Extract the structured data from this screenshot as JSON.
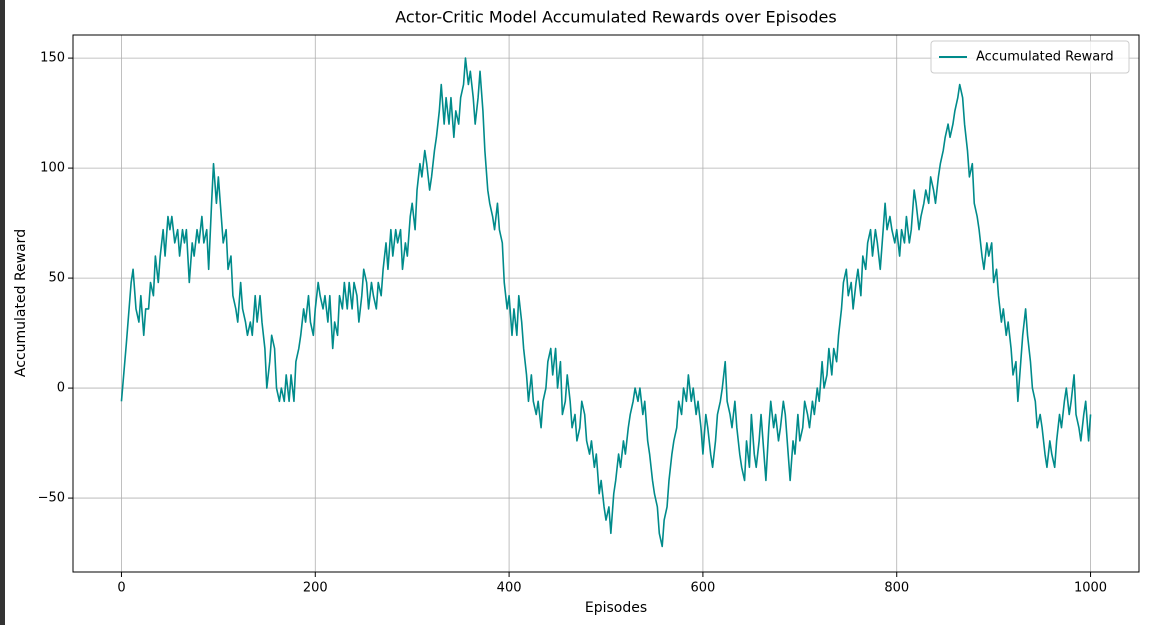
{
  "chart_data": {
    "type": "line",
    "title": "Actor-Critic Model Accumulated Rewards over Episodes",
    "xlabel": "Episodes",
    "ylabel": "Accumulated Reward",
    "x": [
      0,
      5,
      10,
      12,
      15,
      18,
      20,
      23,
      25,
      28,
      30,
      33,
      35,
      38,
      40,
      43,
      45,
      48,
      50,
      52,
      55,
      58,
      60,
      63,
      65,
      67,
      70,
      73,
      75,
      78,
      80,
      83,
      85,
      88,
      90,
      93,
      95,
      98,
      100,
      103,
      105,
      108,
      110,
      113,
      115,
      118,
      120,
      123,
      125,
      128,
      130,
      133,
      135,
      138,
      140,
      143,
      145,
      148,
      150,
      153,
      155,
      158,
      160,
      163,
      165,
      168,
      170,
      173,
      175,
      178,
      180,
      183,
      185,
      188,
      190,
      193,
      195,
      198,
      200,
      203,
      205,
      208,
      210,
      213,
      215,
      218,
      220,
      223,
      225,
      228,
      230,
      233,
      235,
      238,
      240,
      243,
      245,
      248,
      250,
      253,
      255,
      258,
      260,
      263,
      265,
      268,
      270,
      273,
      275,
      278,
      280,
      283,
      285,
      288,
      290,
      293,
      295,
      298,
      300,
      303,
      305,
      308,
      310,
      313,
      315,
      318,
      320,
      323,
      325,
      328,
      330,
      333,
      335,
      338,
      340,
      343,
      345,
      348,
      350,
      353,
      355,
      358,
      360,
      363,
      365,
      368,
      370,
      373,
      375,
      378,
      380,
      383,
      385,
      388,
      390,
      393,
      395,
      398,
      400,
      403,
      405,
      408,
      410,
      413,
      415,
      418,
      420,
      423,
      425,
      428,
      430,
      433,
      435,
      438,
      440,
      443,
      445,
      448,
      450,
      453,
      455,
      458,
      460,
      463,
      465,
      468,
      470,
      473,
      475,
      478,
      480,
      483,
      485,
      488,
      490,
      493,
      495,
      498,
      500,
      503,
      505,
      508,
      510,
      513,
      515,
      518,
      520,
      523,
      525,
      528,
      530,
      533,
      535,
      538,
      540,
      543,
      545,
      548,
      550,
      553,
      555,
      558,
      560,
      563,
      565,
      568,
      570,
      573,
      575,
      578,
      580,
      583,
      585,
      588,
      590,
      593,
      595,
      598,
      600,
      603,
      605,
      608,
      610,
      613,
      615,
      618,
      620,
      623,
      625,
      628,
      630,
      633,
      635,
      638,
      640,
      643,
      645,
      648,
      650,
      653,
      655,
      658,
      660,
      663,
      665,
      668,
      670,
      673,
      675,
      678,
      680,
      683,
      685,
      688,
      690,
      693,
      695,
      698,
      700,
      703,
      705,
      708,
      710,
      713,
      715,
      718,
      720,
      723,
      725,
      728,
      730,
      733,
      735,
      738,
      740,
      743,
      745,
      748,
      750,
      753,
      755,
      758,
      760,
      763,
      765,
      768,
      770,
      773,
      775,
      778,
      780,
      783,
      785,
      788,
      790,
      793,
      795,
      798,
      800,
      803,
      805,
      808,
      810,
      813,
      815,
      818,
      820,
      823,
      825,
      828,
      830,
      833,
      835,
      838,
      840,
      843,
      845,
      848,
      850,
      853,
      855,
      858,
      860,
      863,
      865,
      868,
      870,
      873,
      875,
      878,
      880,
      883,
      885,
      888,
      890,
      893,
      895,
      898,
      900,
      903,
      905,
      908,
      910,
      913,
      915,
      918,
      920,
      923,
      925,
      928,
      930,
      933,
      935,
      938,
      940,
      943,
      945,
      948,
      950,
      953,
      955,
      958,
      960,
      963,
      965,
      968,
      970,
      973,
      975,
      978,
      980,
      983,
      985,
      988,
      990,
      993,
      995,
      998,
      1000
    ],
    "series": [
      {
        "name": "Accumulated Reward",
        "color": "#008b8b",
        "values": [
          -6,
          20,
          48,
          54,
          36,
          30,
          42,
          24,
          36,
          36,
          48,
          42,
          60,
          48,
          60,
          72,
          60,
          78,
          72,
          78,
          66,
          72,
          60,
          72,
          66,
          72,
          48,
          66,
          60,
          72,
          66,
          78,
          66,
          72,
          54,
          84,
          102,
          84,
          96,
          78,
          66,
          72,
          54,
          60,
          42,
          36,
          30,
          48,
          36,
          30,
          24,
          30,
          24,
          42,
          30,
          42,
          30,
          18,
          0,
          12,
          24,
          18,
          0,
          -6,
          0,
          -6,
          6,
          -6,
          6,
          -6,
          12,
          18,
          24,
          36,
          30,
          42,
          30,
          24,
          36,
          48,
          42,
          36,
          42,
          30,
          42,
          18,
          30,
          24,
          42,
          36,
          48,
          36,
          48,
          36,
          48,
          42,
          30,
          42,
          54,
          48,
          36,
          48,
          42,
          36,
          48,
          42,
          54,
          66,
          54,
          72,
          60,
          72,
          66,
          72,
          54,
          66,
          60,
          78,
          84,
          72,
          90,
          102,
          96,
          108,
          102,
          90,
          96,
          108,
          114,
          126,
          138,
          120,
          132,
          120,
          132,
          114,
          126,
          120,
          132,
          138,
          150,
          138,
          144,
          132,
          120,
          132,
          144,
          126,
          108,
          90,
          84,
          78,
          72,
          84,
          72,
          66,
          48,
          36,
          42,
          24,
          36,
          24,
          42,
          30,
          18,
          6,
          -6,
          6,
          -6,
          -12,
          -6,
          -18,
          -6,
          0,
          12,
          18,
          6,
          18,
          0,
          12,
          -12,
          -6,
          6,
          -6,
          -18,
          -12,
          -24,
          -18,
          -6,
          -12,
          -24,
          -30,
          -24,
          -36,
          -30,
          -48,
          -42,
          -54,
          -60,
          -54,
          -66,
          -48,
          -42,
          -30,
          -36,
          -24,
          -30,
          -18,
          -12,
          -6,
          0,
          -6,
          0,
          -12,
          -6,
          -24,
          -30,
          -42,
          -48,
          -54,
          -66,
          -72,
          -60,
          -54,
          -42,
          -30,
          -24,
          -18,
          -6,
          -12,
          0,
          -6,
          6,
          -6,
          0,
          -12,
          -6,
          -18,
          -30,
          -12,
          -18,
          -30,
          -36,
          -24,
          -12,
          -6,
          0,
          12,
          -6,
          -12,
          -18,
          -6,
          -18,
          -30,
          -36,
          -42,
          -24,
          -36,
          -12,
          -30,
          -36,
          -24,
          -12,
          -30,
          -42,
          -18,
          -6,
          -18,
          -12,
          -24,
          -18,
          -6,
          -12,
          -30,
          -42,
          -24,
          -30,
          -12,
          -24,
          -18,
          -6,
          -12,
          -18,
          -6,
          -12,
          0,
          -6,
          12,
          0,
          6,
          18,
          6,
          18,
          12,
          24,
          36,
          48,
          54,
          42,
          48,
          36,
          48,
          54,
          42,
          60,
          54,
          66,
          72,
          60,
          72,
          66,
          54,
          66,
          84,
          72,
          78,
          72,
          66,
          72,
          60,
          72,
          66,
          78,
          66,
          72,
          90,
          84,
          72,
          78,
          84,
          90,
          84,
          96,
          90,
          84,
          96,
          102,
          108,
          114,
          120,
          114,
          120,
          126,
          132,
          138,
          132,
          120,
          108,
          96,
          102,
          84,
          78,
          72,
          60,
          54,
          66,
          60,
          66,
          48,
          54,
          42,
          30,
          36,
          24,
          30,
          18,
          6,
          12,
          -6,
          12,
          24,
          36,
          24,
          12,
          0,
          -6,
          -18,
          -12,
          -18,
          -30,
          -36,
          -24,
          -30,
          -36,
          -24,
          -12,
          -18,
          -6,
          0,
          -12,
          -6,
          6,
          -12,
          -18,
          -24,
          -12,
          -6,
          -24,
          -12
        ]
      }
    ],
    "xlim": [
      -50,
      1050
    ],
    "xticks": [
      0,
      200,
      400,
      600,
      800,
      1000
    ],
    "ylim": [
      -83.6,
      160.5
    ],
    "yticks": [
      {
        "value": -50,
        "label": "−50"
      },
      0,
      50,
      100,
      150
    ],
    "grid": true,
    "legend": "upper right"
  }
}
